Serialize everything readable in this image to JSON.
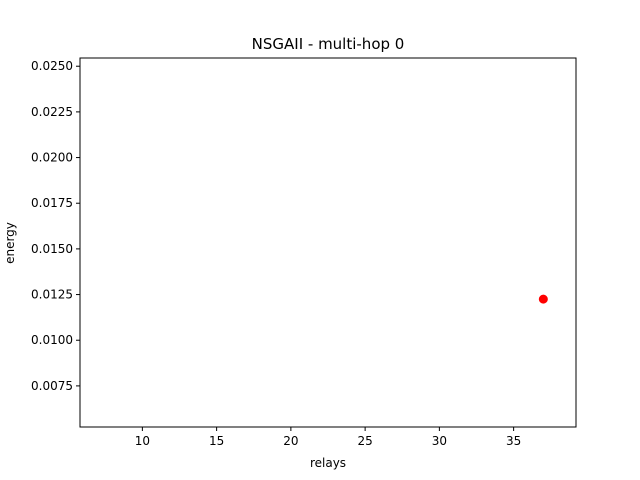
{
  "chart_data": {
    "type": "scatter",
    "title": "NSGAII - multi-hop 0",
    "xlabel": "relays",
    "ylabel": "energy",
    "xlim": [
      5.8,
      39.2
    ],
    "ylim": [
      0.00525,
      0.02545
    ],
    "xticks": [
      10,
      15,
      20,
      25,
      30,
      35
    ],
    "xtick_labels": [
      "10",
      "15",
      "20",
      "25",
      "30",
      "35"
    ],
    "yticks": [
      0.0075,
      0.01,
      0.0125,
      0.015,
      0.0175,
      0.02,
      0.0225,
      0.025
    ],
    "ytick_labels": [
      "0.0075",
      "0.0100",
      "0.0125",
      "0.0150",
      "0.0175",
      "0.0200",
      "0.0225",
      "0.0250"
    ],
    "grid": false,
    "series": [
      {
        "color": "#ff0000",
        "points": [
          {
            "x": 37,
            "y": 0.01225
          }
        ]
      }
    ]
  }
}
